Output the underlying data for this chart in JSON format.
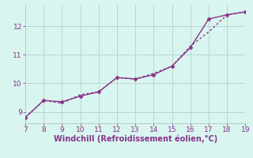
{
  "xlabel": "Windchill (Refroidissement éolien,°C)",
  "x_series1": [
    7,
    8,
    9,
    10,
    11,
    12,
    13,
    14,
    15,
    16,
    17,
    18,
    19
  ],
  "y_series1": [
    8.8,
    9.4,
    9.35,
    9.55,
    9.7,
    10.2,
    10.15,
    10.3,
    10.6,
    11.25,
    12.25,
    12.4,
    12.5
  ],
  "x_series2": [
    7,
    8,
    9,
    10,
    11,
    12,
    13,
    14,
    15,
    16,
    17,
    18,
    19
  ],
  "y_series2": [
    8.8,
    9.4,
    9.3,
    9.6,
    9.7,
    10.2,
    10.15,
    10.35,
    10.6,
    11.3,
    11.8,
    12.4,
    12.5
  ],
  "line_color": "#883388",
  "marker": "D",
  "marker_size": 2.5,
  "linewidth": 1.0,
  "xlim": [
    7,
    19
  ],
  "ylim": [
    8.6,
    12.75
  ],
  "xticks": [
    7,
    8,
    9,
    10,
    11,
    12,
    13,
    14,
    15,
    16,
    17,
    18,
    19
  ],
  "yticks": [
    9,
    10,
    11,
    12
  ],
  "background_color": "#d8f5f0",
  "grid_color": "#b0c8c8",
  "tick_color": "#883388",
  "label_color": "#883388",
  "font_size": 6.5
}
